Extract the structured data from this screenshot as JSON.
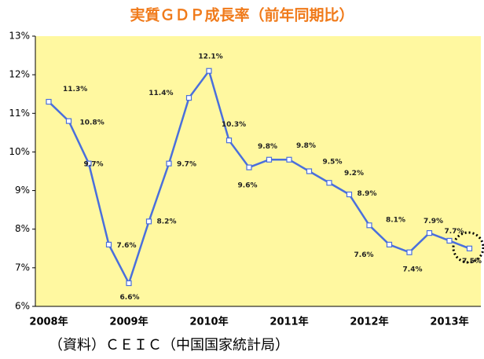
{
  "chart_data": {
    "type": "line",
    "title": "実質ＧＤＰ成長率（前年同期比）",
    "source": "（資料）ＣＥＩＣ（中国国家統計局）",
    "categories": [
      "2008年",
      null,
      null,
      null,
      "2009年",
      null,
      null,
      null,
      "2010年",
      null,
      null,
      null,
      "2011年",
      null,
      null,
      null,
      "2012年",
      null,
      null,
      null,
      "2013年",
      null
    ],
    "values": [
      11.3,
      10.8,
      9.7,
      7.6,
      6.6,
      8.2,
      9.7,
      11.4,
      12.1,
      10.3,
      9.6,
      9.8,
      9.8,
      9.5,
      9.2,
      8.9,
      8.1,
      7.6,
      7.4,
      7.9,
      7.7,
      7.5
    ],
    "value_labels": [
      "11.3%",
      "10.8%",
      "9.7%",
      "7.6%",
      "6.6%",
      "8.2%",
      "9.7%",
      "11.4%",
      "12.1%",
      "10.3%",
      "9.6%",
      "9.8%",
      "9.8%",
      "9.5%",
      "9.2%",
      "8.9%",
      "8.1%",
      "7.6%",
      "7.4%",
      "7.9%",
      "7.7%",
      "7.5%"
    ],
    "color": "#4a6fdc",
    "ylim": [
      6,
      13
    ],
    "yticks": [
      {
        "value": 6,
        "label": "6%"
      },
      {
        "value": 7,
        "label": "7%"
      },
      {
        "value": 8,
        "label": "8%"
      },
      {
        "value": 9,
        "label": "9%"
      },
      {
        "value": 10,
        "label": "10%"
      },
      {
        "value": 11,
        "label": "11%"
      },
      {
        "value": 12,
        "label": "12%"
      },
      {
        "value": 13,
        "label": "13%"
      }
    ],
    "grid": false
  }
}
